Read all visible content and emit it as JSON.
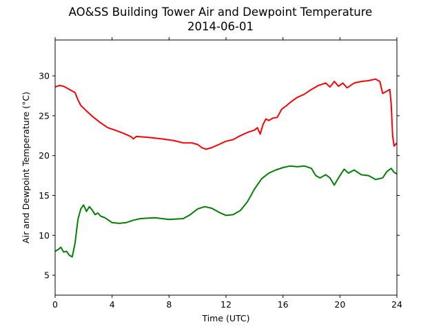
{
  "chart_data": {
    "type": "line",
    "title": "AO&SS Building Tower Air and Dewpoint Temperature",
    "subtitle": "2014-06-01",
    "xlabel": "Time (UTC)",
    "ylabel": "Air and Dewpoint Temperature (°C)",
    "xlim": [
      0,
      24
    ],
    "ylim": [
      2.5,
      34.5
    ],
    "xticks": [
      0,
      4,
      8,
      12,
      16,
      20,
      24
    ],
    "yticks": [
      5,
      10,
      15,
      20,
      25,
      30
    ],
    "grid": false,
    "legend": "none",
    "series": [
      {
        "color": "#ff0000",
        "x": [
          0,
          0.3,
          0.6,
          1.0,
          1.4,
          1.6,
          1.8,
          2.2,
          2.7,
          3.2,
          3.7,
          4.2,
          4.8,
          5.3,
          5.5,
          5.7,
          6.5,
          7.5,
          8.3,
          9.0,
          9.6,
          10.0,
          10.3,
          10.6,
          11.0,
          11.5,
          12.0,
          12.5,
          13.0,
          13.5,
          14.0,
          14.2,
          14.4,
          14.6,
          14.8,
          15.0,
          15.3,
          15.6,
          15.9,
          16.2,
          16.6,
          17.0,
          17.5,
          18.0,
          18.5,
          19.0,
          19.3,
          19.6,
          19.9,
          20.2,
          20.5,
          21.0,
          21.5,
          22.0,
          22.5,
          22.8,
          23.0,
          23.2,
          23.5,
          23.6,
          23.7,
          23.8,
          24.0
        ],
        "y": [
          28.6,
          28.8,
          28.7,
          28.3,
          27.9,
          27.0,
          26.3,
          25.6,
          24.8,
          24.1,
          23.5,
          23.2,
          22.8,
          22.4,
          22.1,
          22.4,
          22.3,
          22.1,
          21.9,
          21.6,
          21.6,
          21.4,
          21.0,
          20.8,
          21.0,
          21.4,
          21.8,
          22.0,
          22.5,
          22.9,
          23.2,
          23.5,
          22.7,
          23.9,
          24.6,
          24.4,
          24.7,
          24.8,
          25.8,
          26.2,
          26.8,
          27.3,
          27.7,
          28.3,
          28.8,
          29.1,
          28.6,
          29.3,
          28.7,
          29.1,
          28.5,
          29.1,
          29.3,
          29.4,
          29.6,
          29.3,
          27.8,
          28.0,
          28.3,
          26.5,
          22.5,
          21.2,
          21.6
        ]
      },
      {
        "color": "#008000",
        "x": [
          0,
          0.2,
          0.4,
          0.6,
          0.8,
          1.0,
          1.2,
          1.4,
          1.6,
          1.8,
          2.0,
          2.2,
          2.4,
          2.6,
          2.8,
          3.0,
          3.2,
          3.5,
          4.0,
          4.5,
          5.0,
          5.5,
          6.0,
          7.0,
          8.0,
          9.0,
          9.5,
          10.0,
          10.5,
          11.0,
          11.5,
          12.0,
          12.5,
          13.0,
          13.5,
          14.0,
          14.5,
          15.0,
          15.5,
          16.0,
          16.5,
          17.0,
          17.5,
          18.0,
          18.3,
          18.6,
          19.0,
          19.3,
          19.6,
          20.0,
          20.3,
          20.6,
          21.0,
          21.5,
          22.0,
          22.5,
          23.0,
          23.3,
          23.6,
          23.8,
          24.0
        ],
        "y": [
          8.0,
          8.2,
          8.5,
          7.9,
          8.0,
          7.5,
          7.3,
          9.0,
          12.0,
          13.3,
          13.8,
          13.0,
          13.6,
          13.2,
          12.6,
          12.8,
          12.4,
          12.2,
          11.6,
          11.5,
          11.6,
          11.9,
          12.1,
          12.2,
          12.0,
          12.1,
          12.6,
          13.3,
          13.6,
          13.4,
          12.9,
          12.5,
          12.6,
          13.1,
          14.2,
          15.8,
          17.1,
          17.8,
          18.2,
          18.5,
          18.7,
          18.6,
          18.7,
          18.4,
          17.5,
          17.2,
          17.6,
          17.2,
          16.3,
          17.5,
          18.3,
          17.8,
          18.2,
          17.6,
          17.5,
          17.0,
          17.2,
          18.0,
          18.4,
          17.9,
          17.7
        ]
      }
    ]
  }
}
